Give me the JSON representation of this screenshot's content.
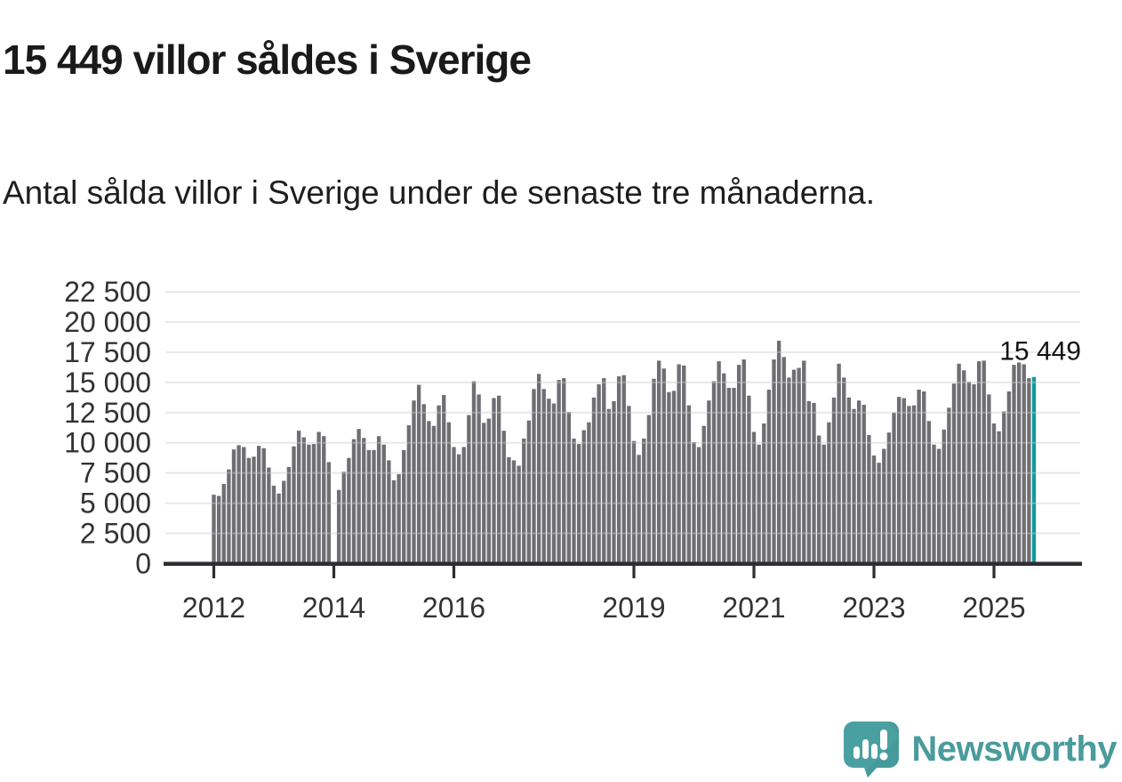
{
  "header": {
    "title": "15 449 villor såldes i Sverige",
    "subtitle": "Antal sålda villor i Sverige under de senaste tre månaderna."
  },
  "footer": {
    "brand": "Newsworthy",
    "brand_color": "#4a9b9c",
    "icon": "newsworthy-speech-bubble-bar-chart-icon",
    "icon_color": "#4aa0a0"
  },
  "chart_data": {
    "type": "bar",
    "title": "15 449 villor såldes i Sverige",
    "subtitle": "Antal sålda villor i Sverige under de senaste tre månaderna.",
    "x_start": {
      "year": 2012,
      "month": 1
    },
    "x_end": {
      "year": 2025,
      "month": 9
    },
    "ylim": [
      0,
      22500
    ],
    "grid": true,
    "bar_color": "#6f6e73",
    "highlight_color": "#12999b",
    "highlight_last": true,
    "annotation": {
      "text": "15 449",
      "value": 15449
    },
    "y_ticks": [
      {
        "value": 0,
        "label": "0"
      },
      {
        "value": 2500,
        "label": "2 500"
      },
      {
        "value": 5000,
        "label": "5 000"
      },
      {
        "value": 7500,
        "label": "7 500"
      },
      {
        "value": 10000,
        "label": "10 000"
      },
      {
        "value": 12500,
        "label": "12 500"
      },
      {
        "value": 15000,
        "label": "15 000"
      },
      {
        "value": 17500,
        "label": "17 500"
      },
      {
        "value": 20000,
        "label": "20 000"
      },
      {
        "value": 22500,
        "label": "22 500"
      }
    ],
    "x_ticks": [
      {
        "year": 2012,
        "label": "2012"
      },
      {
        "year": 2014,
        "label": "2014"
      },
      {
        "year": 2016,
        "label": "2016"
      },
      {
        "year": 2019,
        "label": "2019"
      },
      {
        "year": 2021,
        "label": "2021"
      },
      {
        "year": 2023,
        "label": "2023"
      },
      {
        "year": 2025,
        "label": "2025"
      }
    ],
    "values": [
      5700,
      5600,
      6600,
      7800,
      9450,
      9800,
      9650,
      8750,
      8850,
      9750,
      9550,
      7950,
      6450,
      5800,
      6850,
      8000,
      9700,
      11000,
      10450,
      9850,
      9900,
      10900,
      10550,
      8400,
      null,
      6100,
      7600,
      8750,
      10300,
      11150,
      10400,
      9400,
      9400,
      10550,
      9850,
      8550,
      6900,
      7400,
      9400,
      11450,
      13500,
      14800,
      13200,
      11800,
      11400,
      13100,
      13950,
      11700,
      9650,
      9050,
      9650,
      12300,
      15100,
      14000,
      11650,
      12000,
      13700,
      13900,
      11000,
      8800,
      8550,
      8100,
      10350,
      11850,
      14450,
      15700,
      14450,
      13650,
      13250,
      15200,
      15350,
      12550,
      10350,
      9900,
      11050,
      11700,
      13750,
      14850,
      15350,
      12800,
      13450,
      15500,
      15600,
      13050,
      10150,
      9000,
      10350,
      12300,
      15300,
      16800,
      16150,
      14200,
      14300,
      16500,
      16400,
      13100,
      10050,
      9650,
      11400,
      13500,
      15100,
      16750,
      15750,
      14550,
      14550,
      16450,
      16900,
      13900,
      10900,
      9850,
      11600,
      14400,
      16900,
      18450,
      17100,
      15400,
      16050,
      16200,
      16800,
      13450,
      13300,
      10600,
      9850,
      11700,
      13750,
      16550,
      15400,
      13750,
      12800,
      13500,
      13150,
      10650,
      8950,
      8350,
      9500,
      10850,
      12500,
      13800,
      13700,
      13050,
      13100,
      14400,
      14250,
      11800,
      9850,
      9500,
      11100,
      12900,
      14900,
      16550,
      16000,
      15050,
      14850,
      16750,
      16800,
      14000,
      11600,
      10950,
      12600,
      14250,
      16450,
      16650,
      16500,
      15350,
      15449
    ]
  }
}
